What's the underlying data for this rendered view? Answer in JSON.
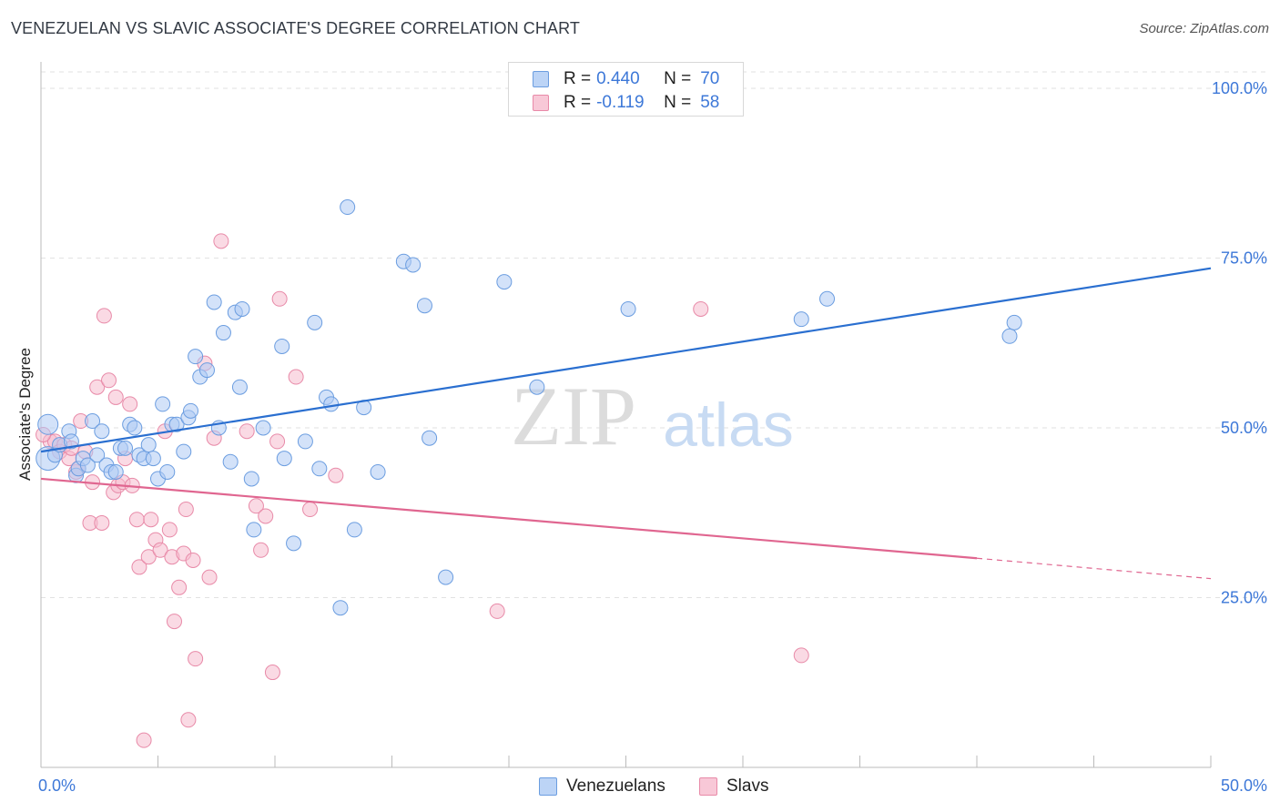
{
  "header": {
    "title": "VENEZUELAN VS SLAVIC ASSOCIATE'S DEGREE CORRELATION CHART",
    "source": "Source: ZipAtlas.com"
  },
  "watermark": {
    "zip": "ZIP",
    "atlas": "atlas"
  },
  "colors": {
    "venezuelan_fill": "#aecbf4",
    "venezuelan_stroke": "#6b9de0",
    "venezuelan_line": "#2a6fd0",
    "slav_fill": "#f6bccd",
    "slav_stroke": "#e88aa8",
    "slav_line": "#e06690",
    "tick_text": "#3d78d8",
    "grid": "#e2e2e2"
  },
  "legend": {
    "rows": [
      {
        "r_label": "R =",
        "r_value": "0.440",
        "n_label": "N =",
        "n_value": "70"
      },
      {
        "r_label": "R =",
        "r_value": "-0.119",
        "n_label": "N =",
        "n_value": "58"
      }
    ]
  },
  "bottom_legend": {
    "venezuelans": "Venezuelans",
    "slavs": "Slavs"
  },
  "chart_data": {
    "type": "scatter",
    "title": "VENEZUELAN VS SLAVIC ASSOCIATE'S DEGREE CORRELATION CHART",
    "xlabel": "",
    "ylabel": "Associate's Degree",
    "xlim": [
      0,
      50
    ],
    "ylim": [
      0,
      100
    ],
    "x_tick_labels": [
      "0.0%",
      "50.0%"
    ],
    "y_tick_labels": [
      "100.0%",
      "75.0%",
      "50.0%",
      "25.0%"
    ],
    "y_gridlines": [
      25,
      50,
      75,
      100
    ],
    "grid": true,
    "legend_position": "top-center",
    "series": [
      {
        "name": "Venezuelans",
        "r": 0.44,
        "n": 70,
        "trend": {
          "x0": 0,
          "y0": 46.5,
          "x1": 50,
          "y1": 73.5
        },
        "points": [
          [
            0.3,
            45.5
          ],
          [
            0.3,
            50.5
          ],
          [
            0.6,
            46
          ],
          [
            0.8,
            47.5
          ],
          [
            1.2,
            49.5
          ],
          [
            1.3,
            48
          ],
          [
            1.5,
            43
          ],
          [
            1.6,
            44
          ],
          [
            1.8,
            45.5
          ],
          [
            2,
            44.5
          ],
          [
            2.2,
            51
          ],
          [
            2.4,
            46
          ],
          [
            2.6,
            49.5
          ],
          [
            2.8,
            44.5
          ],
          [
            3,
            43.5
          ],
          [
            3.2,
            43.5
          ],
          [
            3.4,
            47
          ],
          [
            3.6,
            47
          ],
          [
            3.8,
            50.5
          ],
          [
            4,
            50
          ],
          [
            4.2,
            46
          ],
          [
            4.4,
            45.5
          ],
          [
            4.6,
            47.5
          ],
          [
            4.8,
            45.5
          ],
          [
            5,
            42.5
          ],
          [
            5.2,
            53.5
          ],
          [
            5.4,
            43.5
          ],
          [
            5.6,
            50.5
          ],
          [
            5.8,
            50.5
          ],
          [
            6.1,
            46.5
          ],
          [
            6.3,
            51.5
          ],
          [
            6.4,
            52.5
          ],
          [
            6.6,
            60.5
          ],
          [
            6.8,
            57.5
          ],
          [
            7.1,
            58.5
          ],
          [
            7.4,
            68.5
          ],
          [
            7.6,
            50
          ],
          [
            7.8,
            64
          ],
          [
            8.1,
            45
          ],
          [
            8.3,
            67
          ],
          [
            8.5,
            56
          ],
          [
            8.6,
            67.5
          ],
          [
            9,
            42.5
          ],
          [
            9.1,
            35
          ],
          [
            9.5,
            50
          ],
          [
            10.3,
            62
          ],
          [
            10.4,
            45.5
          ],
          [
            10.8,
            33
          ],
          [
            11.3,
            48
          ],
          [
            11.7,
            65.5
          ],
          [
            11.9,
            44
          ],
          [
            12.2,
            54.5
          ],
          [
            12.4,
            53.5
          ],
          [
            12.8,
            23.5
          ],
          [
            13.1,
            82.5
          ],
          [
            13.4,
            35
          ],
          [
            13.8,
            53
          ],
          [
            14.4,
            43.5
          ],
          [
            15.5,
            74.5
          ],
          [
            15.9,
            74
          ],
          [
            16.4,
            68
          ],
          [
            16.6,
            48.5
          ],
          [
            17.3,
            28
          ],
          [
            19.8,
            71.5
          ],
          [
            21.2,
            56
          ],
          [
            25.1,
            67.5
          ],
          [
            32.5,
            66
          ],
          [
            33.6,
            69
          ],
          [
            41.4,
            63.5
          ],
          [
            41.6,
            65.5
          ]
        ]
      },
      {
        "name": "Slavs",
        "r": -0.119,
        "n": 58,
        "trend": {
          "x0": 0,
          "y0": 42.5,
          "x1": 40,
          "y1": 30.8,
          "dash_x1": 50,
          "dash_y1": 27.8
        },
        "points": [
          [
            0.4,
            48
          ],
          [
            0.6,
            48
          ],
          [
            0.8,
            46.5
          ],
          [
            1,
            47.5
          ],
          [
            1.2,
            45.5
          ],
          [
            1.3,
            47
          ],
          [
            1.5,
            43.5
          ],
          [
            1.6,
            44
          ],
          [
            1.7,
            51
          ],
          [
            1.9,
            46.5
          ],
          [
            2.1,
            36
          ],
          [
            2.2,
            42
          ],
          [
            2.4,
            56
          ],
          [
            2.6,
            36
          ],
          [
            2.7,
            66.5
          ],
          [
            2.9,
            57
          ],
          [
            3.1,
            40.5
          ],
          [
            3.2,
            54.5
          ],
          [
            3.3,
            41.5
          ],
          [
            3.5,
            42
          ],
          [
            3.6,
            45.5
          ],
          [
            3.8,
            53.5
          ],
          [
            3.9,
            41.5
          ],
          [
            4.1,
            36.5
          ],
          [
            4.2,
            29.5
          ],
          [
            4.4,
            4
          ],
          [
            4.6,
            31
          ],
          [
            4.7,
            36.5
          ],
          [
            4.9,
            33.5
          ],
          [
            5.1,
            32
          ],
          [
            5.3,
            49.5
          ],
          [
            5.5,
            35
          ],
          [
            5.6,
            31
          ],
          [
            5.7,
            21.5
          ],
          [
            5.9,
            26.5
          ],
          [
            6.1,
            31.5
          ],
          [
            6.2,
            38
          ],
          [
            6.3,
            7
          ],
          [
            6.5,
            30.5
          ],
          [
            6.6,
            16
          ],
          [
            7,
            59.5
          ],
          [
            7.2,
            28
          ],
          [
            7.4,
            48.5
          ],
          [
            7.7,
            77.5
          ],
          [
            8.8,
            49.5
          ],
          [
            9.2,
            38.5
          ],
          [
            9.4,
            32
          ],
          [
            9.6,
            37
          ],
          [
            9.9,
            14
          ],
          [
            10.1,
            48
          ],
          [
            10.2,
            69
          ],
          [
            10.9,
            57.5
          ],
          [
            11.5,
            38
          ],
          [
            12.6,
            43
          ],
          [
            19.5,
            23
          ],
          [
            28.2,
            67.5
          ],
          [
            32.5,
            16.5
          ],
          [
            0.1,
            49
          ]
        ]
      }
    ]
  }
}
